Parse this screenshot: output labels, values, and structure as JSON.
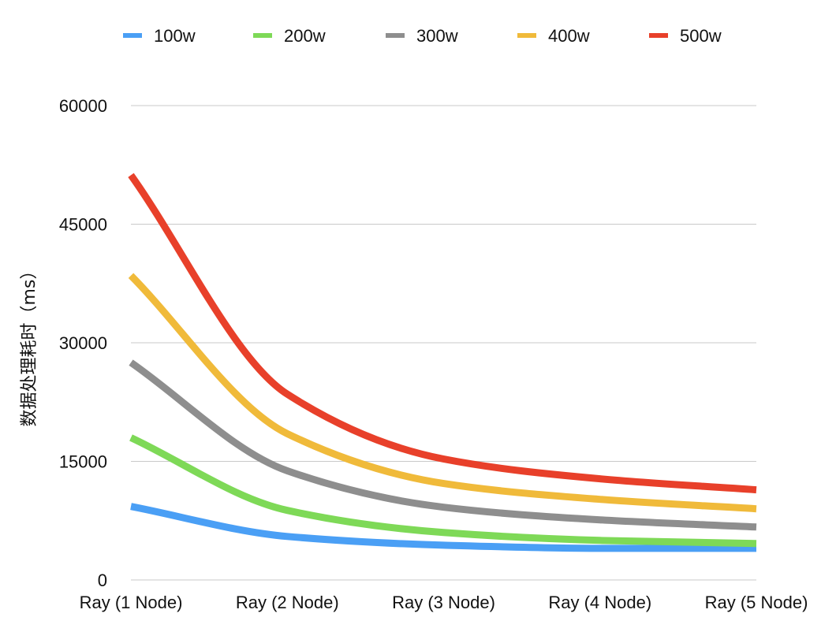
{
  "chart_data": {
    "type": "line",
    "title": "",
    "xlabel": "",
    "ylabel": "数据处理耗时（ms）",
    "categories": [
      "Ray (1 Node)",
      "Ray (2 Node)",
      "Ray (3 Node)",
      "Ray (4 Node)",
      "Ray (5 Node)"
    ],
    "ylim": [
      0,
      60000
    ],
    "yticks": [
      0,
      15000,
      30000,
      45000,
      60000
    ],
    "ytick_labels": [
      "0",
      "15000",
      "30000",
      "45000",
      "60000"
    ],
    "grid": true,
    "legend_position": "top",
    "smooth": true,
    "series": [
      {
        "name": "100w",
        "color": "#4a9ff5",
        "values": [
          9300,
          5500,
          4400,
          4000,
          4000
        ]
      },
      {
        "name": "200w",
        "color": "#7ed957",
        "values": [
          18000,
          8800,
          6000,
          5000,
          4600
        ]
      },
      {
        "name": "300w",
        "color": "#8e8e8e",
        "values": [
          27500,
          13800,
          9200,
          7600,
          6700
        ]
      },
      {
        "name": "400w",
        "color": "#f0ba3a",
        "values": [
          38500,
          18500,
          12200,
          10200,
          9000
        ]
      },
      {
        "name": "500w",
        "color": "#e8402a",
        "values": [
          51200,
          23500,
          15300,
          12800,
          11400
        ]
      }
    ]
  }
}
